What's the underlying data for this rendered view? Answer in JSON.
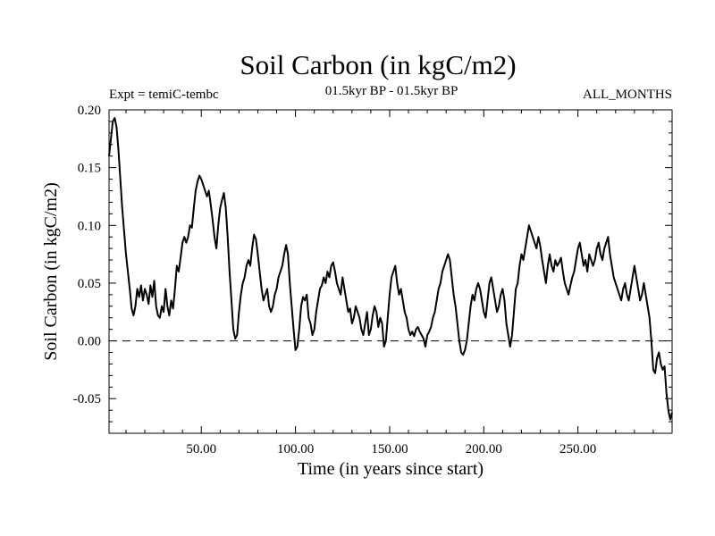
{
  "chart_data": {
    "type": "line",
    "title": "Soil Carbon (in kgC/m2)",
    "subtitle": "01.5kyr BP - 01.5kyr BP",
    "experiment_label": "Expt = temiC-tembc",
    "months_label": "ALL_MONTHS",
    "xlabel": "Time (in years since start)",
    "ylabel": "Soil Carbon (in kgC/m2)",
    "xlim": [
      1,
      300
    ],
    "ylim": [
      -0.08,
      0.2
    ],
    "xticks": [
      50,
      100,
      150,
      200,
      250
    ],
    "xtick_labels": [
      "50.00",
      "100.00",
      "150.00",
      "200.00",
      "250.00"
    ],
    "yticks": [
      -0.05,
      0.0,
      0.05,
      0.1,
      0.15,
      0.2
    ],
    "ytick_labels": [
      "-0.05",
      "0.00",
      "0.05",
      "0.10",
      "0.15",
      "0.20"
    ],
    "reference_line": {
      "y": 0.0,
      "style": "dashed"
    },
    "series": [
      {
        "name": "Soil Carbon",
        "color": "#000000",
        "points": [
          [
            1,
            0.16
          ],
          [
            2,
            0.175
          ],
          [
            3,
            0.19
          ],
          [
            4,
            0.193
          ],
          [
            5,
            0.185
          ],
          [
            6,
            0.165
          ],
          [
            7,
            0.14
          ],
          [
            8,
            0.115
          ],
          [
            9,
            0.095
          ],
          [
            10,
            0.075
          ],
          [
            11,
            0.06
          ],
          [
            12,
            0.045
          ],
          [
            13,
            0.028
          ],
          [
            14,
            0.022
          ],
          [
            15,
            0.03
          ],
          [
            16,
            0.045
          ],
          [
            17,
            0.038
          ],
          [
            18,
            0.048
          ],
          [
            19,
            0.035
          ],
          [
            20,
            0.045
          ],
          [
            21,
            0.04
          ],
          [
            22,
            0.032
          ],
          [
            23,
            0.048
          ],
          [
            24,
            0.038
          ],
          [
            25,
            0.052
          ],
          [
            26,
            0.03
          ],
          [
            27,
            0.022
          ],
          [
            28,
            0.02
          ],
          [
            29,
            0.03
          ],
          [
            30,
            0.025
          ],
          [
            31,
            0.045
          ],
          [
            32,
            0.03
          ],
          [
            33,
            0.022
          ],
          [
            34,
            0.035
          ],
          [
            35,
            0.028
          ],
          [
            36,
            0.045
          ],
          [
            37,
            0.065
          ],
          [
            38,
            0.06
          ],
          [
            39,
            0.072
          ],
          [
            40,
            0.085
          ],
          [
            41,
            0.09
          ],
          [
            42,
            0.085
          ],
          [
            43,
            0.09
          ],
          [
            44,
            0.1
          ],
          [
            45,
            0.098
          ],
          [
            46,
            0.115
          ],
          [
            47,
            0.13
          ],
          [
            48,
            0.138
          ],
          [
            49,
            0.143
          ],
          [
            50,
            0.14
          ],
          [
            51,
            0.135
          ],
          [
            52,
            0.13
          ],
          [
            53,
            0.125
          ],
          [
            54,
            0.13
          ],
          [
            55,
            0.118
          ],
          [
            56,
            0.105
          ],
          [
            57,
            0.09
          ],
          [
            58,
            0.08
          ],
          [
            59,
            0.1
          ],
          [
            60,
            0.115
          ],
          [
            61,
            0.122
          ],
          [
            62,
            0.128
          ],
          [
            63,
            0.115
          ],
          [
            64,
            0.09
          ],
          [
            65,
            0.06
          ],
          [
            66,
            0.035
          ],
          [
            67,
            0.01
          ],
          [
            68,
            0.002
          ],
          [
            69,
            0.005
          ],
          [
            70,
            0.025
          ],
          [
            71,
            0.04
          ],
          [
            72,
            0.05
          ],
          [
            73,
            0.055
          ],
          [
            74,
            0.065
          ],
          [
            75,
            0.07
          ],
          [
            76,
            0.065
          ],
          [
            77,
            0.08
          ],
          [
            78,
            0.092
          ],
          [
            79,
            0.088
          ],
          [
            80,
            0.075
          ],
          [
            81,
            0.06
          ],
          [
            82,
            0.045
          ],
          [
            83,
            0.035
          ],
          [
            84,
            0.04
          ],
          [
            85,
            0.045
          ],
          [
            86,
            0.03
          ],
          [
            87,
            0.025
          ],
          [
            88,
            0.03
          ],
          [
            89,
            0.04
          ],
          [
            90,
            0.045
          ],
          [
            91,
            0.055
          ],
          [
            92,
            0.06
          ],
          [
            93,
            0.065
          ],
          [
            94,
            0.075
          ],
          [
            95,
            0.083
          ],
          [
            96,
            0.075
          ],
          [
            97,
            0.05
          ],
          [
            98,
            0.03
          ],
          [
            99,
            0.01
          ],
          [
            100,
            -0.008
          ],
          [
            101,
            -0.005
          ],
          [
            102,
            0.01
          ],
          [
            103,
            0.03
          ],
          [
            104,
            0.038
          ],
          [
            105,
            0.035
          ],
          [
            106,
            0.04
          ],
          [
            107,
            0.02
          ],
          [
            108,
            0.015
          ],
          [
            109,
            0.005
          ],
          [
            110,
            0.01
          ],
          [
            111,
            0.025
          ],
          [
            112,
            0.035
          ],
          [
            113,
            0.045
          ],
          [
            114,
            0.048
          ],
          [
            115,
            0.055
          ],
          [
            116,
            0.05
          ],
          [
            117,
            0.06
          ],
          [
            118,
            0.055
          ],
          [
            119,
            0.065
          ],
          [
            120,
            0.068
          ],
          [
            121,
            0.06
          ],
          [
            122,
            0.05
          ],
          [
            123,
            0.045
          ],
          [
            124,
            0.04
          ],
          [
            125,
            0.055
          ],
          [
            126,
            0.045
          ],
          [
            127,
            0.035
          ],
          [
            128,
            0.025
          ],
          [
            129,
            0.028
          ],
          [
            130,
            0.015
          ],
          [
            131,
            0.02
          ],
          [
            132,
            0.03
          ],
          [
            133,
            0.025
          ],
          [
            134,
            0.02
          ],
          [
            135,
            0.01
          ],
          [
            136,
            0.005
          ],
          [
            137,
            0.015
          ],
          [
            138,
            0.025
          ],
          [
            139,
            0.005
          ],
          [
            140,
            0.01
          ],
          [
            141,
            0.022
          ],
          [
            142,
            0.03
          ],
          [
            143,
            0.025
          ],
          [
            144,
            0.012
          ],
          [
            145,
            0.02
          ],
          [
            146,
            0.015
          ],
          [
            147,
            -0.005
          ],
          [
            148,
            0.0
          ],
          [
            149,
            0.02
          ],
          [
            150,
            0.04
          ],
          [
            151,
            0.055
          ],
          [
            152,
            0.06
          ],
          [
            153,
            0.065
          ],
          [
            154,
            0.05
          ],
          [
            155,
            0.04
          ],
          [
            156,
            0.045
          ],
          [
            157,
            0.035
          ],
          [
            158,
            0.025
          ],
          [
            159,
            0.02
          ],
          [
            160,
            0.01
          ],
          [
            161,
            0.005
          ],
          [
            162,
            0.008
          ],
          [
            163,
            0.004
          ],
          [
            164,
            0.01
          ],
          [
            165,
            0.012
          ],
          [
            166,
            0.008
          ],
          [
            167,
            0.005
          ],
          [
            168,
            0.002
          ],
          [
            169,
            -0.005
          ],
          [
            170,
            0.005
          ],
          [
            171,
            0.008
          ],
          [
            172,
            0.012
          ],
          [
            173,
            0.02
          ],
          [
            174,
            0.025
          ],
          [
            175,
            0.035
          ],
          [
            176,
            0.045
          ],
          [
            177,
            0.05
          ],
          [
            178,
            0.06
          ],
          [
            179,
            0.065
          ],
          [
            180,
            0.07
          ],
          [
            181,
            0.075
          ],
          [
            182,
            0.07
          ],
          [
            183,
            0.055
          ],
          [
            184,
            0.04
          ],
          [
            185,
            0.03
          ],
          [
            186,
            0.015
          ],
          [
            187,
            0.0
          ],
          [
            188,
            -0.01
          ],
          [
            189,
            -0.012
          ],
          [
            190,
            -0.008
          ],
          [
            191,
            0.0
          ],
          [
            192,
            0.015
          ],
          [
            193,
            0.03
          ],
          [
            194,
            0.04
          ],
          [
            195,
            0.035
          ],
          [
            196,
            0.045
          ],
          [
            197,
            0.05
          ],
          [
            198,
            0.045
          ],
          [
            199,
            0.035
          ],
          [
            200,
            0.025
          ],
          [
            201,
            0.02
          ],
          [
            202,
            0.035
          ],
          [
            203,
            0.05
          ],
          [
            204,
            0.055
          ],
          [
            205,
            0.045
          ],
          [
            206,
            0.035
          ],
          [
            207,
            0.025
          ],
          [
            208,
            0.03
          ],
          [
            209,
            0.04
          ],
          [
            210,
            0.045
          ],
          [
            211,
            0.035
          ],
          [
            212,
            0.015
          ],
          [
            213,
            0.005
          ],
          [
            214,
            -0.005
          ],
          [
            215,
            0.005
          ],
          [
            216,
            0.025
          ],
          [
            217,
            0.045
          ],
          [
            218,
            0.05
          ],
          [
            219,
            0.065
          ],
          [
            220,
            0.075
          ],
          [
            221,
            0.07
          ],
          [
            222,
            0.08
          ],
          [
            223,
            0.09
          ],
          [
            224,
            0.1
          ],
          [
            225,
            0.095
          ],
          [
            226,
            0.09
          ],
          [
            227,
            0.085
          ],
          [
            228,
            0.08
          ],
          [
            229,
            0.09
          ],
          [
            230,
            0.082
          ],
          [
            231,
            0.07
          ],
          [
            232,
            0.06
          ],
          [
            233,
            0.05
          ],
          [
            234,
            0.065
          ],
          [
            235,
            0.075
          ],
          [
            236,
            0.065
          ],
          [
            237,
            0.06
          ],
          [
            238,
            0.07
          ],
          [
            239,
            0.065
          ],
          [
            240,
            0.068
          ],
          [
            241,
            0.072
          ],
          [
            242,
            0.06
          ],
          [
            243,
            0.05
          ],
          [
            244,
            0.045
          ],
          [
            245,
            0.04
          ],
          [
            246,
            0.048
          ],
          [
            247,
            0.055
          ],
          [
            248,
            0.06
          ],
          [
            249,
            0.07
          ],
          [
            250,
            0.08
          ],
          [
            251,
            0.085
          ],
          [
            252,
            0.075
          ],
          [
            253,
            0.065
          ],
          [
            254,
            0.07
          ],
          [
            255,
            0.06
          ],
          [
            256,
            0.075
          ],
          [
            257,
            0.07
          ],
          [
            258,
            0.065
          ],
          [
            259,
            0.07
          ],
          [
            260,
            0.08
          ],
          [
            261,
            0.085
          ],
          [
            262,
            0.075
          ],
          [
            263,
            0.07
          ],
          [
            264,
            0.08
          ],
          [
            265,
            0.085
          ],
          [
            266,
            0.09
          ],
          [
            267,
            0.075
          ],
          [
            268,
            0.065
          ],
          [
            269,
            0.055
          ],
          [
            270,
            0.05
          ],
          [
            271,
            0.045
          ],
          [
            272,
            0.04
          ],
          [
            273,
            0.035
          ],
          [
            274,
            0.045
          ],
          [
            275,
            0.05
          ],
          [
            276,
            0.04
          ],
          [
            277,
            0.035
          ],
          [
            278,
            0.045
          ],
          [
            279,
            0.055
          ],
          [
            280,
            0.065
          ],
          [
            281,
            0.055
          ],
          [
            282,
            0.045
          ],
          [
            283,
            0.035
          ],
          [
            284,
            0.04
          ],
          [
            285,
            0.05
          ],
          [
            286,
            0.04
          ],
          [
            287,
            0.03
          ],
          [
            288,
            0.02
          ],
          [
            289,
            0.0
          ],
          [
            290,
            -0.025
          ],
          [
            291,
            -0.028
          ],
          [
            292,
            -0.015
          ],
          [
            293,
            -0.01
          ],
          [
            294,
            -0.02
          ],
          [
            295,
            -0.025
          ],
          [
            296,
            -0.022
          ],
          [
            297,
            -0.045
          ],
          [
            298,
            -0.06
          ],
          [
            299,
            -0.068
          ],
          [
            300,
            -0.062
          ]
        ]
      }
    ]
  }
}
